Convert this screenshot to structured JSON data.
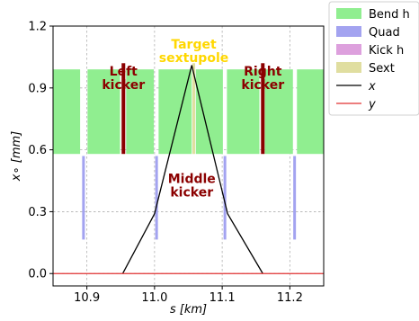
{
  "chart_data": {
    "type": "line",
    "xlabel": "s [km]",
    "ylabel": "x∘ [mm]",
    "xlim": [
      10.85,
      11.25
    ],
    "ylim": [
      -0.06,
      1.2
    ],
    "x_ticks": [
      "10.9",
      "11.0",
      "11.1",
      "11.2"
    ],
    "x_tick_values": [
      10.9,
      11.0,
      11.1,
      11.2
    ],
    "y_ticks": [
      "0.0",
      "0.3",
      "0.6",
      "0.9",
      "1.2"
    ],
    "y_tick_values": [
      0.0,
      0.3,
      0.6,
      0.9,
      1.2
    ],
    "grid": true,
    "legend_placement": "outside top-right",
    "legend": [
      {
        "label": "Bend h",
        "kind": "patch",
        "color": "#90ee90"
      },
      {
        "label": "Quad",
        "kind": "patch",
        "color": "#a3a3f0"
      },
      {
        "label": "Kick h",
        "kind": "patch",
        "color": "#dda0dd"
      },
      {
        "label": "Sext",
        "kind": "patch",
        "color": "#e0dea0"
      },
      {
        "label": "x",
        "kind": "line",
        "color": "#000000"
      },
      {
        "label": "y",
        "kind": "line",
        "color": "#e03030"
      }
    ],
    "elements": {
      "bend_h": {
        "color": "#90ee90",
        "y_range": [
          0.58,
          0.99
        ],
        "intervals": [
          [
            10.85,
            10.89
          ],
          [
            10.901,
            10.949
          ],
          [
            10.958,
            10.999
          ],
          [
            11.006,
            11.055
          ],
          [
            11.061,
            11.101
          ],
          [
            11.107,
            11.155
          ],
          [
            11.163,
            11.2045
          ],
          [
            11.2105,
            11.25
          ]
        ]
      },
      "quad": {
        "color": "#a3a3f0",
        "y_range": [
          0.165,
          0.57
        ],
        "positions": [
          10.895,
          11.003,
          11.104,
          11.207
        ]
      },
      "kicker": {
        "color": "#8b0000",
        "y_range": [
          0.58,
          1.02
        ],
        "positions": [
          10.954,
          11.16
        ]
      },
      "sext": {
        "color": "#e0dea0",
        "y_range": [
          0.58,
          1.02
        ],
        "positions": [
          11.058
        ]
      }
    },
    "series": [
      {
        "name": "x",
        "color": "#000000",
        "x": [
          10.953,
          11.0,
          11.055,
          11.108,
          11.16
        ],
        "y": [
          0.0,
          0.29,
          1.01,
          0.29,
          0.0
        ]
      },
      {
        "name": "y",
        "color": "#e03030",
        "x": [
          10.85,
          11.25
        ],
        "y": [
          0.0,
          0.0
        ]
      }
    ],
    "annotations": [
      {
        "text": [
          "Left",
          "kicker"
        ],
        "color": "#8b0000",
        "x": 10.954,
        "y": 0.96
      },
      {
        "text": [
          "Right",
          "kicker"
        ],
        "color": "#8b0000",
        "x": 11.16,
        "y": 0.96
      },
      {
        "text": [
          "Target",
          "sextupole"
        ],
        "color": "#ffd700",
        "x": 11.058,
        "y": 1.09
      },
      {
        "text": [
          "Middle",
          "kicker"
        ],
        "color": "#8b0000",
        "x": 11.055,
        "y": 0.44
      }
    ]
  }
}
